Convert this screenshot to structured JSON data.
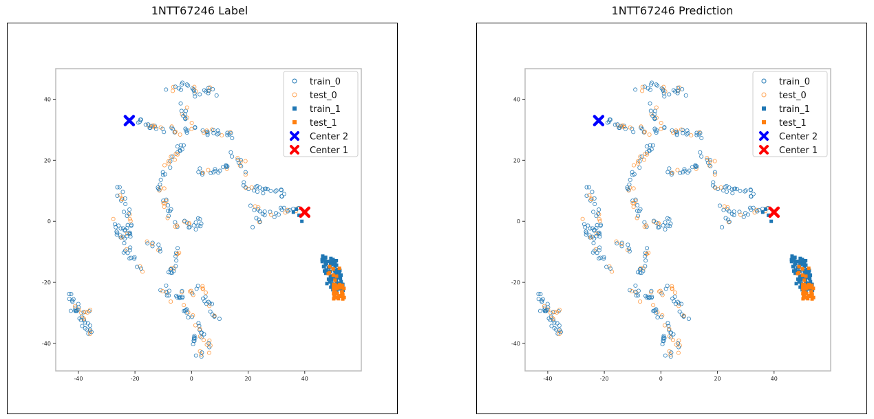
{
  "chart_data": [
    {
      "type": "scatter",
      "title": "1NTT67246 Label",
      "xlim": [
        -48,
        60
      ],
      "ylim": [
        -49,
        50
      ],
      "xticks": [
        -40,
        -20,
        0,
        20,
        40
      ],
      "yticks": [
        -40,
        -20,
        0,
        20,
        40
      ],
      "grid": false,
      "legend_placement": "top-right",
      "legend": [
        "train_0",
        "test_0",
        "train_1",
        "test_1",
        "Center 2",
        "Center 1"
      ],
      "center_2": {
        "x": -22,
        "y": 33
      },
      "center_1": {
        "x": 40,
        "y": 3
      },
      "series_colors": {
        "train": "#1f77b4",
        "test": "#ff7f0e",
        "center_2": "#0000ff",
        "center_1": "#ff0000"
      }
    },
    {
      "type": "scatter",
      "title": "1NTT67246 Prediction",
      "xlim": [
        -48,
        60
      ],
      "ylim": [
        -49,
        50
      ],
      "xticks": [
        -40,
        -20,
        0,
        20,
        40
      ],
      "yticks": [
        -40,
        -20,
        0,
        20,
        40
      ],
      "grid": false,
      "legend_placement": "top-right",
      "legend": [
        "train_0",
        "test_0",
        "train_1",
        "test_1",
        "Center 2",
        "Center 1"
      ],
      "center_2": {
        "x": -22,
        "y": 33
      },
      "center_1": {
        "x": 40,
        "y": 3
      },
      "series_colors": {
        "train": "#1f77b4",
        "test": "#ff7f0e",
        "center_2": "#0000ff",
        "center_1": "#ff0000"
      }
    }
  ]
}
